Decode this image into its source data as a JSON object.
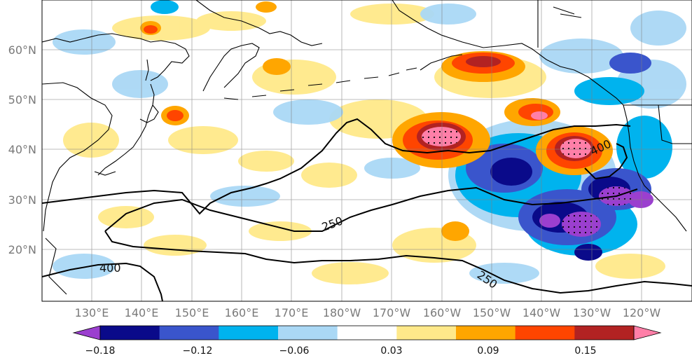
{
  "map": {
    "lat_labels": [
      "60°N",
      "50°N",
      "40°N",
      "30°N",
      "20°N"
    ],
    "lat_values": [
      60,
      50,
      40,
      30,
      20
    ],
    "lon_labels": [
      "130°E",
      "140°E",
      "150°E",
      "160°E",
      "170°E",
      "180°W",
      "170°W",
      "160°W",
      "150°W",
      "140°W",
      "130°W",
      "120°W"
    ],
    "lon_values": [
      130,
      140,
      150,
      160,
      170,
      180,
      190,
      200,
      210,
      220,
      230,
      240
    ],
    "lon_range": [
      120,
      250
    ],
    "lat_range": [
      10,
      70
    ],
    "contour_labels": [
      "250",
      "250",
      "400",
      "400"
    ],
    "grid": true
  },
  "colorbar": {
    "tick_labels": [
      "−0.18",
      "−0.12",
      "−0.06",
      "0.03",
      "0.09",
      "0.15"
    ],
    "colors": [
      "#9b3fcf",
      "#0a0a8a",
      "#3a55cc",
      "#00b3ee",
      "#aad8f5",
      "#ffffff",
      "#ffe98a",
      "#ffa600",
      "#ff4500",
      "#b22222",
      "#ff7fa8"
    ],
    "extend": "both"
  },
  "colors": {
    "contour": "#000000",
    "coast": "#000000",
    "grid": "#808080"
  }
}
